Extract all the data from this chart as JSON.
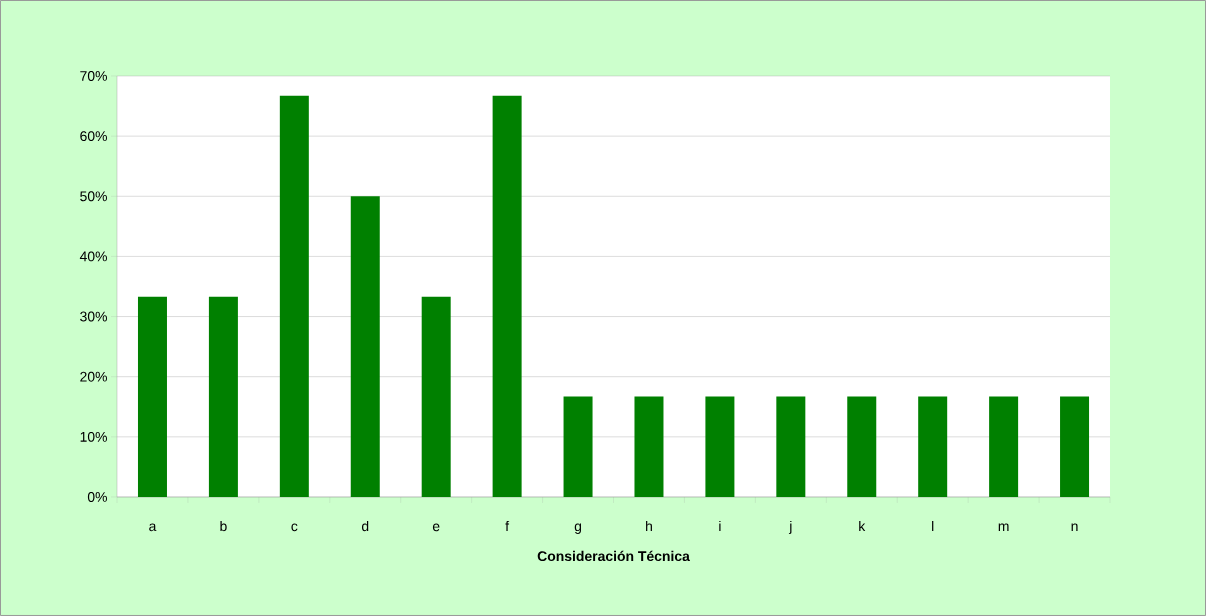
{
  "chart_data": {
    "type": "bar",
    "xlabel": "Consideración Técnica",
    "categories": [
      "a",
      "b",
      "c",
      "d",
      "e",
      "f",
      "g",
      "h",
      "i",
      "j",
      "k",
      "l",
      "m",
      "n"
    ],
    "values": [
      33.3,
      33.3,
      66.7,
      50,
      33.3,
      66.7,
      16.7,
      16.7,
      16.7,
      16.7,
      16.7,
      16.7,
      16.7,
      16.7
    ],
    "color": "#008000",
    "ylim": [
      0,
      70
    ],
    "yticks": [
      {
        "value": 0,
        "label": "0%"
      },
      {
        "value": 10,
        "label": "10%"
      },
      {
        "value": 20,
        "label": "20%"
      },
      {
        "value": 30,
        "label": "30%"
      },
      {
        "value": 40,
        "label": "40%"
      },
      {
        "value": 50,
        "label": "50%"
      },
      {
        "value": 60,
        "label": "60%"
      },
      {
        "value": 70,
        "label": "70%"
      }
    ],
    "grid": "y"
  }
}
